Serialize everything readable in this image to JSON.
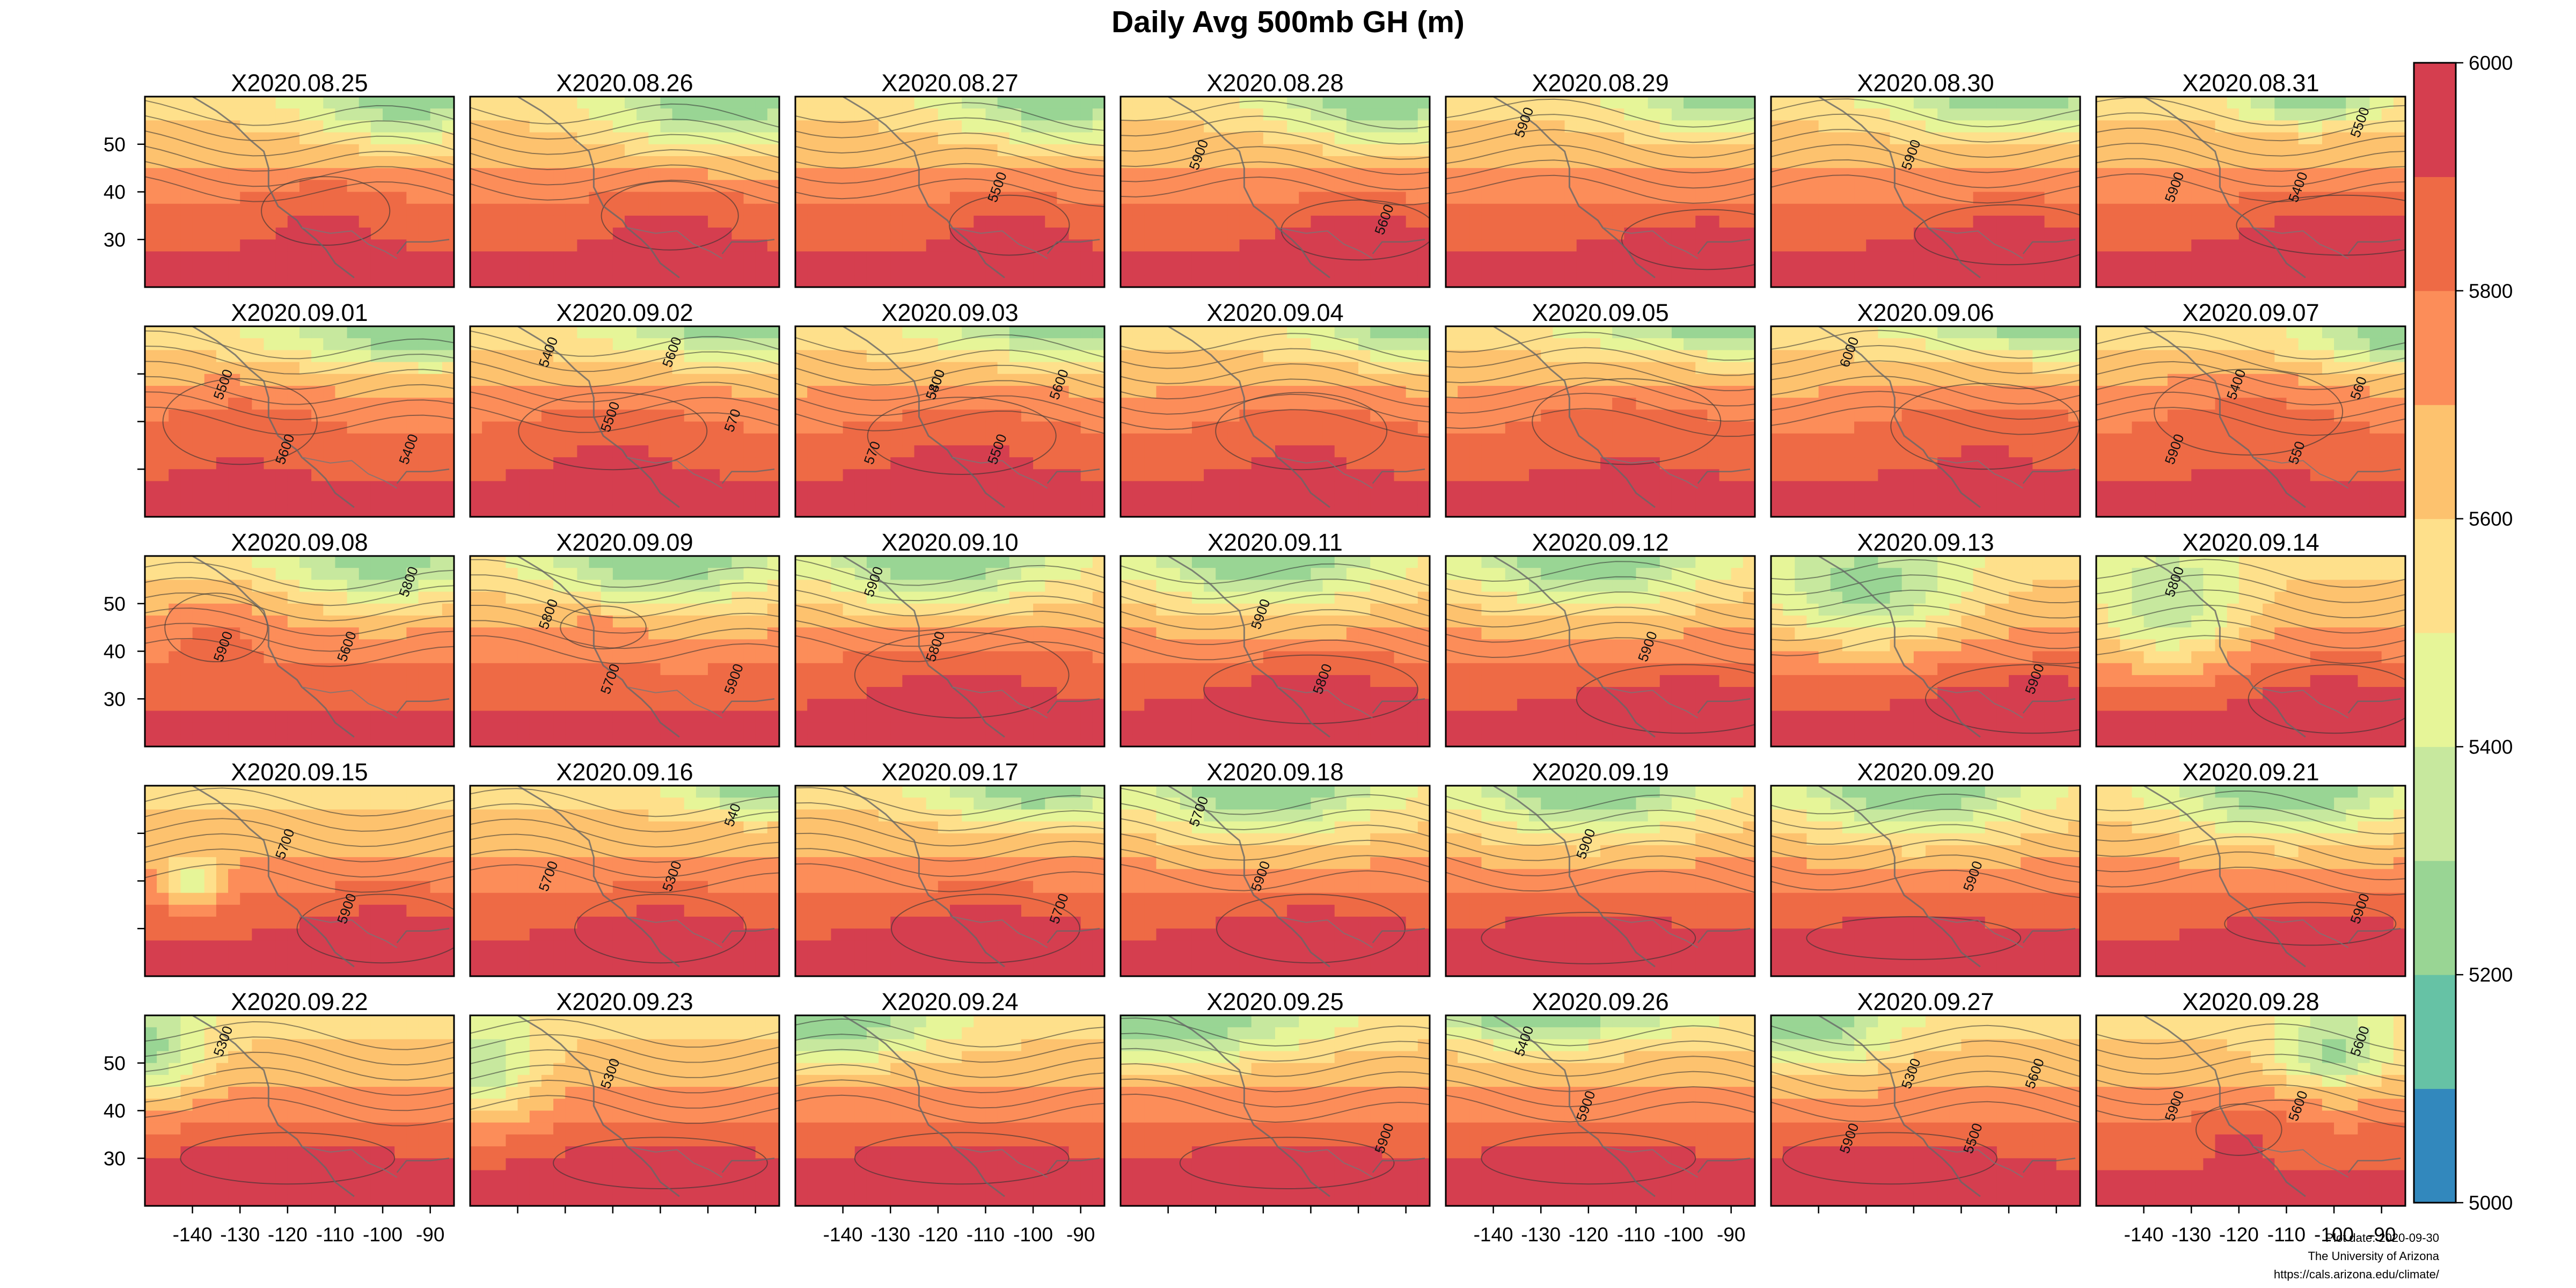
{
  "chart_data": {
    "type": "heatmap",
    "title": "Daily Avg 500mb GH (m)",
    "layout": "35 small-multiple contour maps, 5 rows x 7 columns",
    "xlabel": "",
    "ylabel": "",
    "x_ticks": [
      "-140",
      "-130",
      "-120",
      "-110",
      "-100",
      "-90"
    ],
    "y_ticks": [
      "50",
      "40",
      "30"
    ],
    "x_tick_values": [
      -140,
      -130,
      -120,
      -110,
      -100,
      -90
    ],
    "y_tick_values": [
      50,
      40,
      30
    ],
    "xlim": [
      -150,
      -85
    ],
    "ylim": [
      20,
      60
    ],
    "colorbar": {
      "range": [
        5000,
        6000
      ],
      "labels": [
        "6000",
        "5800",
        "5600",
        "5400",
        "5200",
        "5000"
      ],
      "label_values": [
        6000,
        5800,
        5600,
        5400,
        5200,
        5000
      ],
      "levels": [
        5000,
        5100,
        5200,
        5300,
        5400,
        5500,
        5600,
        5700,
        5800,
        5900,
        6000
      ],
      "colors": [
        "#3288bd",
        "#66c2a5",
        "#99d594",
        "#c7e89e",
        "#e6f598",
        "#fee08b",
        "#fdc26e",
        "#fc8d59",
        "#ee6a45",
        "#d53e4f"
      ]
    },
    "panels": [
      {
        "date": "X2020.08.25",
        "contour_labels": []
      },
      {
        "date": "X2020.08.26",
        "contour_labels": []
      },
      {
        "date": "X2020.08.27",
        "contour_labels": [
          "5500"
        ]
      },
      {
        "date": "X2020.08.28",
        "contour_labels": [
          "5600",
          "5900"
        ]
      },
      {
        "date": "X2020.08.29",
        "contour_labels": [
          "5900"
        ]
      },
      {
        "date": "X2020.08.30",
        "contour_labels": [
          "5900"
        ]
      },
      {
        "date": "X2020.08.31",
        "contour_labels": [
          "5400",
          "5500",
          "5900"
        ]
      },
      {
        "date": "X2020.09.01",
        "contour_labels": [
          "5400",
          "5500",
          "5600"
        ]
      },
      {
        "date": "X2020.09.02",
        "contour_labels": [
          "5400",
          "5500",
          "5600",
          "570"
        ]
      },
      {
        "date": "X2020.09.03",
        "contour_labels": [
          "5400",
          "5500",
          "5600",
          "570",
          "5800"
        ]
      },
      {
        "date": "X2020.09.04",
        "contour_labels": []
      },
      {
        "date": "X2020.09.05",
        "contour_labels": []
      },
      {
        "date": "X2020.09.06",
        "contour_labels": [
          "6000"
        ]
      },
      {
        "date": "X2020.09.07",
        "contour_labels": [
          "5400",
          "550",
          "560",
          "5900"
        ]
      },
      {
        "date": "X2020.09.08",
        "contour_labels": [
          "5600",
          "5800",
          "5900"
        ]
      },
      {
        "date": "X2020.09.09",
        "contour_labels": [
          "5900",
          "5800",
          "5700"
        ]
      },
      {
        "date": "X2020.09.10",
        "contour_labels": [
          "5900",
          "5800"
        ]
      },
      {
        "date": "X2020.09.11",
        "contour_labels": [
          "5900",
          "5800"
        ]
      },
      {
        "date": "X2020.09.12",
        "contour_labels": [
          "5900"
        ]
      },
      {
        "date": "X2020.09.13",
        "contour_labels": [
          "5900"
        ]
      },
      {
        "date": "X2020.09.14",
        "contour_labels": [
          "5800"
        ]
      },
      {
        "date": "X2020.09.15",
        "contour_labels": [
          "5700",
          "5900"
        ]
      },
      {
        "date": "X2020.09.16",
        "contour_labels": [
          "5300",
          "540",
          "5700"
        ]
      },
      {
        "date": "X2020.09.17",
        "contour_labels": [
          "5700"
        ]
      },
      {
        "date": "X2020.09.18",
        "contour_labels": [
          "5700",
          "5900"
        ]
      },
      {
        "date": "X2020.09.19",
        "contour_labels": [
          "5900"
        ]
      },
      {
        "date": "X2020.09.20",
        "contour_labels": [
          "5900"
        ]
      },
      {
        "date": "X2020.09.21",
        "contour_labels": [
          "5900"
        ]
      },
      {
        "date": "X2020.09.22",
        "contour_labels": [
          "5300"
        ]
      },
      {
        "date": "X2020.09.23",
        "contour_labels": [
          "5300"
        ]
      },
      {
        "date": "X2020.09.24",
        "contour_labels": []
      },
      {
        "date": "X2020.09.25",
        "contour_labels": [
          "5900"
        ]
      },
      {
        "date": "X2020.09.26",
        "contour_labels": [
          "5400",
          "5900"
        ]
      },
      {
        "date": "X2020.09.27",
        "contour_labels": [
          "5300",
          "5500",
          "5600",
          "5900"
        ]
      },
      {
        "date": "X2020.09.28",
        "contour_labels": [
          "5600",
          "5600",
          "5900"
        ]
      }
    ]
  },
  "footer": {
    "plot_date": "Plot date: 2020-09-30",
    "institution": "The University of Arizona",
    "url": "https://cals.arizona.edu/climate/"
  }
}
